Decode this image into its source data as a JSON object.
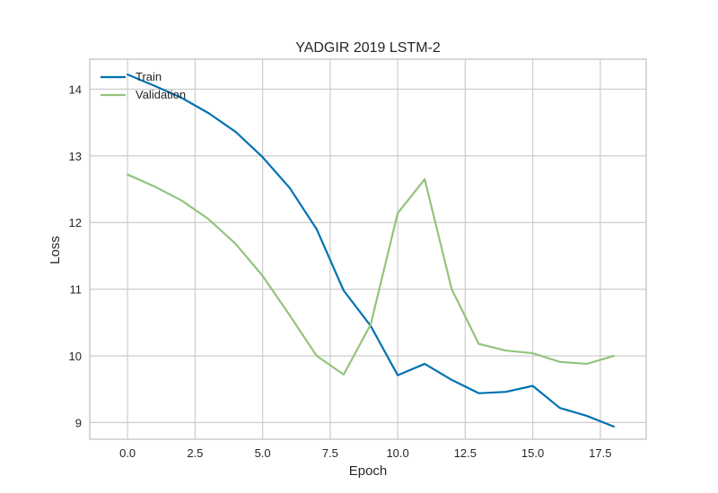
{
  "chart_data": {
    "type": "line",
    "title": "YADGIR 2019 LSTM-2",
    "xlabel": "Epoch",
    "ylabel": "Loss",
    "xlim": [
      -1.4,
      19.2
    ],
    "ylim": [
      8.75,
      14.45
    ],
    "xticks": [
      "0.0",
      "2.5",
      "5.0",
      "7.5",
      "10.0",
      "12.5",
      "15.0",
      "17.5"
    ],
    "xtick_values": [
      0,
      2.5,
      5,
      7.5,
      10,
      12.5,
      15,
      17.5
    ],
    "yticks": [
      "9",
      "10",
      "11",
      "12",
      "13",
      "14"
    ],
    "ytick_values": [
      9,
      10,
      11,
      12,
      13,
      14
    ],
    "grid": true,
    "legend_position": "top-left",
    "x": [
      0,
      1,
      2,
      3,
      4,
      5,
      6,
      7,
      8,
      9,
      10,
      11,
      12,
      13,
      14,
      15,
      16,
      17,
      18
    ],
    "series": [
      {
        "name": "Train",
        "color": "#0072b2",
        "values": [
          14.22,
          14.05,
          13.87,
          13.64,
          13.36,
          12.98,
          12.52,
          11.9,
          10.98,
          10.45,
          9.71,
          9.88,
          9.64,
          9.44,
          9.46,
          9.55,
          9.22,
          9.1,
          8.94
        ]
      },
      {
        "name": "Validation",
        "color": "#93c47d",
        "values": [
          12.72,
          12.54,
          12.33,
          12.05,
          11.68,
          11.2,
          10.61,
          10.0,
          9.72,
          10.47,
          12.14,
          12.65,
          11.0,
          10.18,
          10.08,
          10.04,
          9.91,
          9.88,
          10.0
        ]
      }
    ]
  }
}
